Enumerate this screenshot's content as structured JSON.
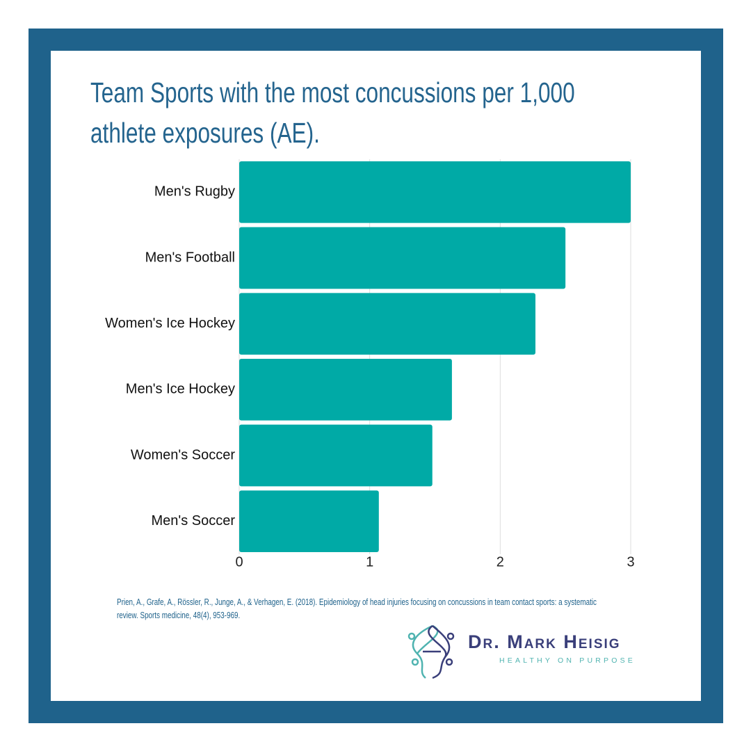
{
  "chart_data": {
    "type": "bar",
    "orientation": "horizontal",
    "title": "Team Sports with the most concussions per 1,000 athlete exposures (AE).",
    "categories": [
      "Men's Rugby",
      "Men's Football",
      "Women's Ice Hockey",
      "Men's Ice Hockey",
      "Women's Soccer",
      "Men's Soccer"
    ],
    "values": [
      3.0,
      2.5,
      2.27,
      1.63,
      1.48,
      1.07
    ],
    "color": "#00aaa6",
    "xlim": [
      0,
      3
    ],
    "xticks": [
      0,
      1,
      2,
      3
    ],
    "grid": true
  },
  "citation": "Prien, A., Grafe, A., Rössler, R., Junge, A., & Verhagen, E. (2018). Epidemiology of head injuries focusing on concussions in team contact sports: a systematic review. Sports medicine, 48(4), 953-969.",
  "brand": {
    "name": "Dr. Mark Heisig",
    "tagline": "HEALTHY ON PURPOSE"
  }
}
